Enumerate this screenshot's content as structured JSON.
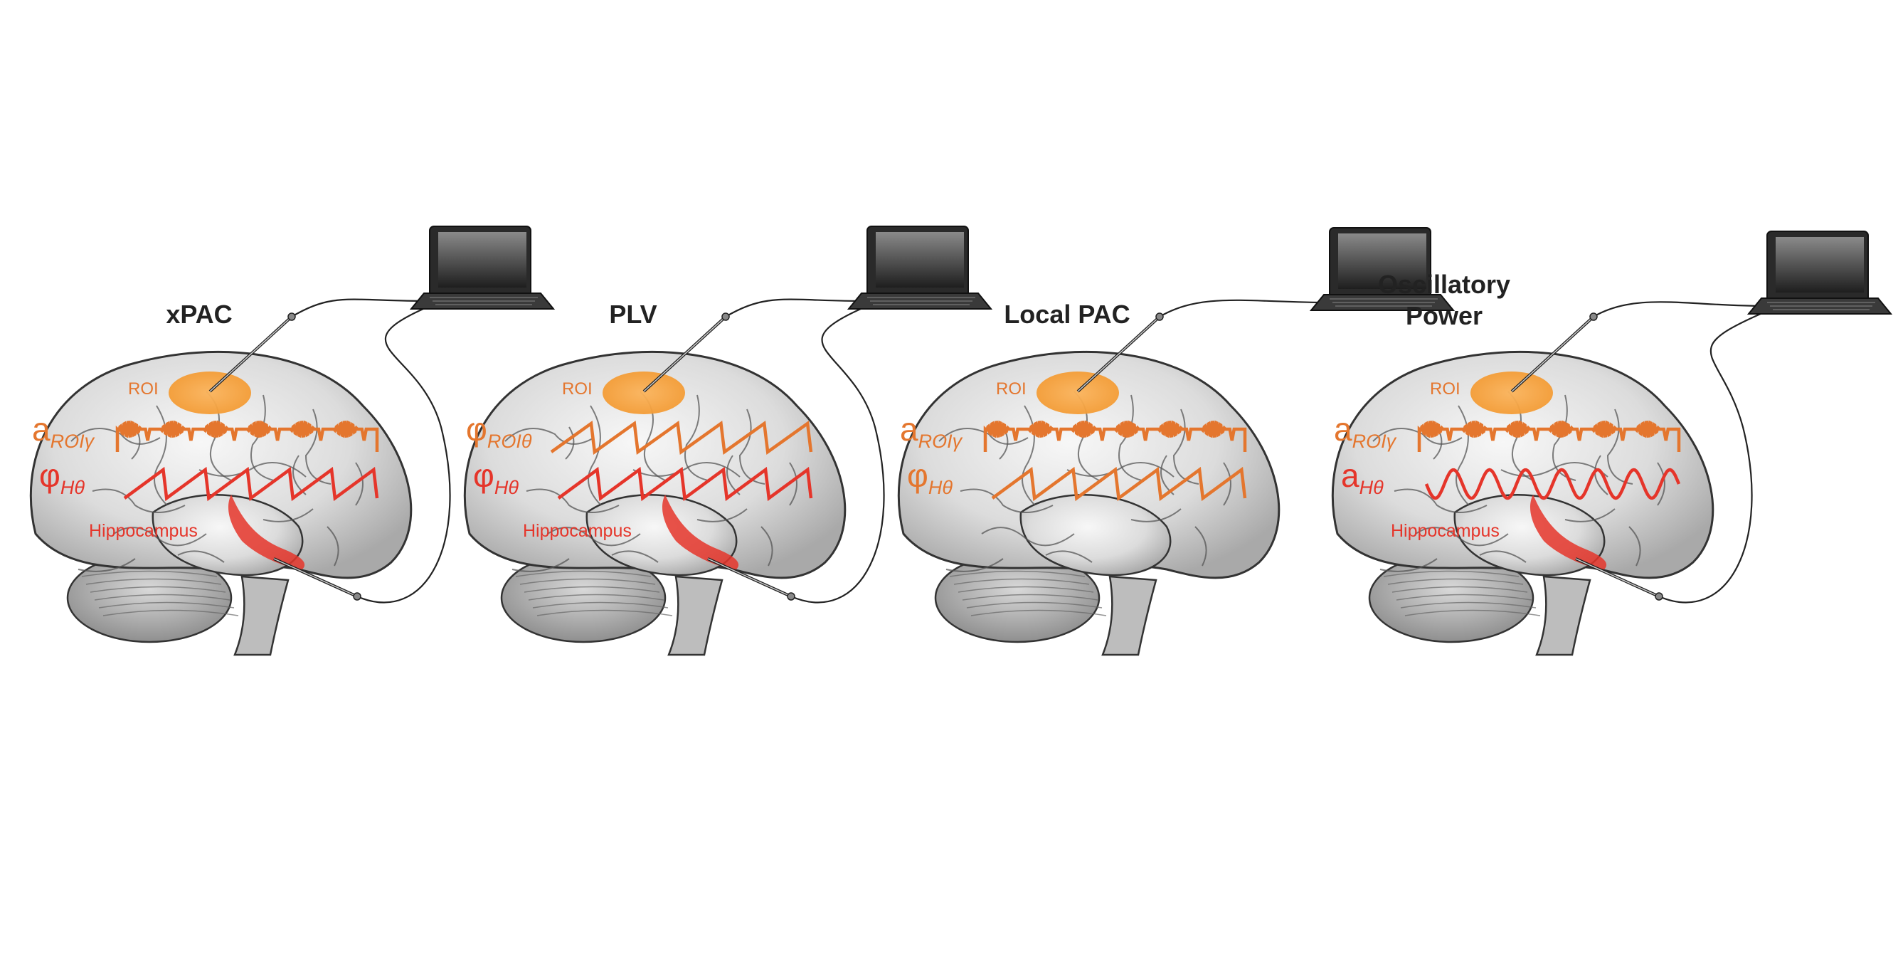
{
  "panels": [
    {
      "title_line1": "xPAC",
      "title_line2": "",
      "roi_label": "ROI",
      "hippocampus_label": "Hippocampus",
      "signal1": {
        "symbol": "a",
        "subscript": "ROIγ",
        "color": "#e4762e",
        "waveform": "gamma-burst"
      },
      "signal2": {
        "symbol": "φ",
        "subscript": "Hθ",
        "color": "#e5352a",
        "waveform": "sawtooth"
      }
    },
    {
      "title_line1": "PLV",
      "title_line2": "",
      "roi_label": "ROI",
      "hippocampus_label": "Hippocampus",
      "signal1": {
        "symbol": "φ",
        "subscript": "ROIθ",
        "color": "#e4762e",
        "waveform": "sawtooth"
      },
      "signal2": {
        "symbol": "φ",
        "subscript": "Hθ",
        "color": "#e5352a",
        "waveform": "sawtooth"
      }
    },
    {
      "title_line1": "Local PAC",
      "title_line2": "",
      "roi_label": "ROI",
      "hippocampus_label": "",
      "signal1": {
        "symbol": "a",
        "subscript": "ROIγ",
        "color": "#e4762e",
        "waveform": "gamma-burst"
      },
      "signal2": {
        "symbol": "φ",
        "subscript": "Hθ",
        "color": "#e4762e",
        "waveform": "sawtooth"
      }
    },
    {
      "title_line1": "Oscillatory",
      "title_line2": "Power",
      "roi_label": "ROI",
      "hippocampus_label": "Hippocampus",
      "signal1": {
        "symbol": "a",
        "subscript": "ROIγ",
        "color": "#e4762e",
        "waveform": "gamma-burst"
      },
      "signal2": {
        "symbol": "a",
        "subscript": "Hθ",
        "color": "#e5352a",
        "waveform": "sine"
      }
    }
  ],
  "colors": {
    "roi": "#f6a13a",
    "hippocampus": "#e5352a",
    "gamma": "#e4762e",
    "theta": "#e5352a",
    "brain_fill": "#dcdcdc",
    "brain_outline": "#333333"
  },
  "icons": [
    "brain-illustration",
    "laptop-icon",
    "electrode-probe-icon"
  ]
}
